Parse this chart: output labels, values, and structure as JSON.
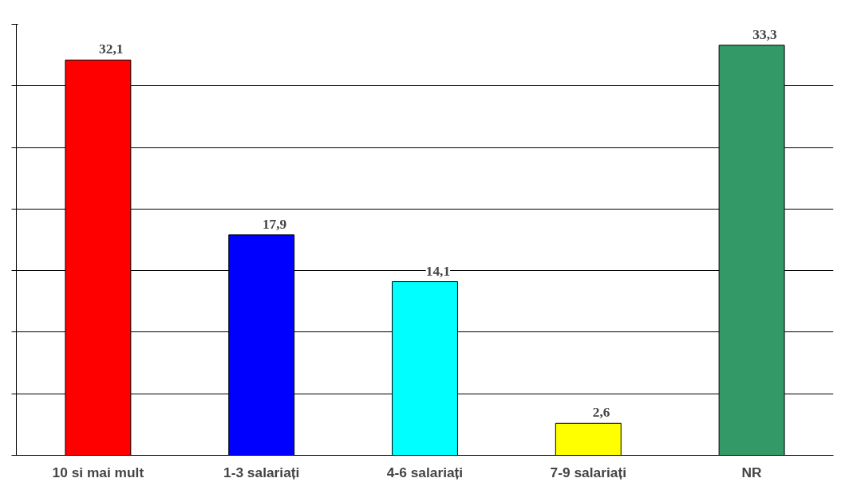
{
  "chart_data": {
    "type": "bar",
    "categories": [
      "10 si mai mult",
      "1-3 salariați",
      "4-6 salariați",
      "7-9 salariați",
      "NR"
    ],
    "values": [
      32.1,
      17.9,
      14.1,
      2.6,
      33.3
    ],
    "colors": [
      "#ff0000",
      "#0000ff",
      "#00ffff",
      "#ffff00",
      "#339966"
    ],
    "value_labels": [
      "32,1",
      "17,9",
      "14,1",
      "2,6",
      "33,3"
    ],
    "ylim": [
      0,
      35
    ],
    "yticks": [
      {
        "value": 0,
        "label": null
      },
      {
        "value": 5,
        "label": null
      },
      {
        "value": 10,
        "label": null
      },
      {
        "value": 15,
        "label": null
      },
      {
        "value": 20,
        "label": null
      },
      {
        "value": 25,
        "label": null
      },
      {
        "value": 30,
        "label": null
      },
      {
        "value": 35,
        "label": null
      }
    ],
    "tick_labels": "x",
    "grid": "y"
  }
}
